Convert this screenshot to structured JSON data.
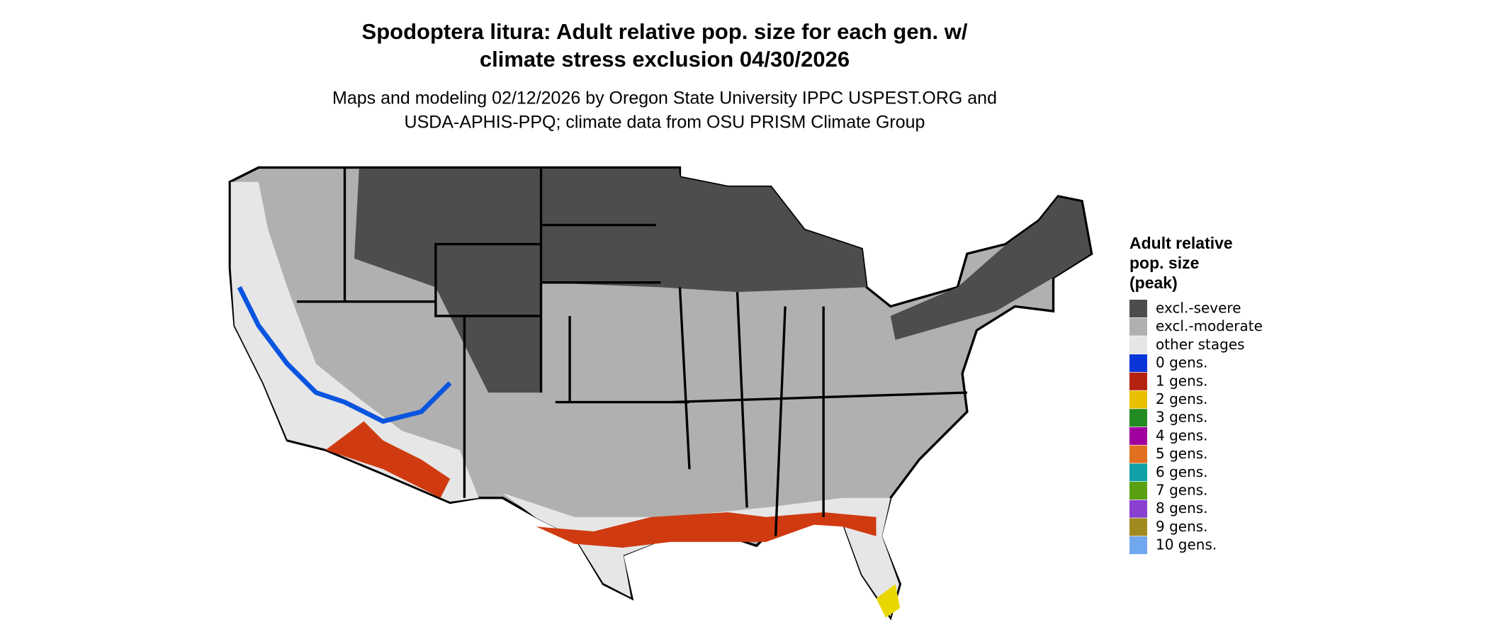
{
  "header": {
    "title_lines": [
      "Spodoptera litura: Adult relative pop. size for each gen. w/",
      "climate stress exclusion 04/30/2026"
    ],
    "subtitle_lines": [
      "Maps and modeling 02/12/2026 by Oregon State University IPPC USPEST.ORG and",
      "USDA-APHIS-PPQ; climate data from OSU PRISM Climate Group"
    ]
  },
  "legend": {
    "title_lines": [
      "Adult relative",
      "pop. size",
      "(peak)"
    ],
    "items": [
      {
        "label": "excl.-severe",
        "color": "#4d4d4d"
      },
      {
        "label": "excl.-moderate",
        "color": "#b0b0b0"
      },
      {
        "label": "other stages",
        "color": "#e6e6e6"
      },
      {
        "label": "0 gens.",
        "color": "#0a35d8"
      },
      {
        "label": "1 gens.",
        "color": "#b4230f"
      },
      {
        "label": "2 gens.",
        "color": "#e8c000"
      },
      {
        "label": "3 gens.",
        "color": "#228b22"
      },
      {
        "label": "4 gens.",
        "color": "#a000a0"
      },
      {
        "label": "5 gens.",
        "color": "#e07020"
      },
      {
        "label": "6 gens.",
        "color": "#10a0a8"
      },
      {
        "label": "7 gens.",
        "color": "#5aa010"
      },
      {
        "label": "8 gens.",
        "color": "#8a40d0"
      },
      {
        "label": "9 gens.",
        "color": "#a08a20"
      },
      {
        "label": "10 gens.",
        "color": "#70a8f0"
      }
    ]
  }
}
